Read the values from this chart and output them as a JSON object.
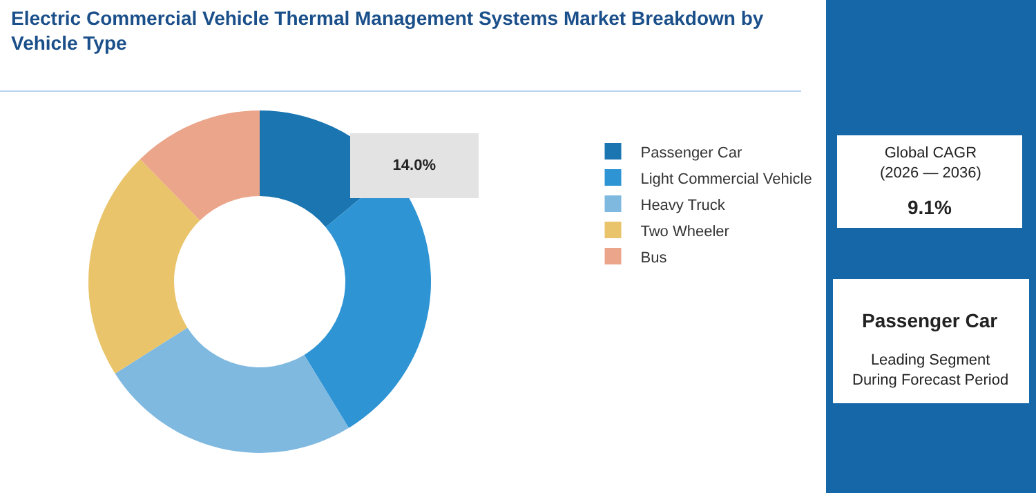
{
  "chart_data": {
    "type": "donut",
    "title": "Electric Commercial Vehicle Thermal Management Systems Market Breakdown by Vehicle Type",
    "categories": [
      "Passenger Car",
      "Light Commercial Vehicle",
      "Heavy Truck",
      "Two Wheeler",
      "Bus"
    ],
    "values": [
      14.0,
      27.3,
      24.7,
      21.7,
      12.3
    ],
    "colors": [
      "#1a75b0",
      "#2f94d4",
      "#7fb9e0",
      "#e9c46a",
      "#eba58a"
    ],
    "value_labels": [
      "14.0%",
      null,
      null,
      null,
      null
    ],
    "legend": "right",
    "annotations": [
      "Global CAGR\n(2026 — 2036)",
      "9.1%",
      "Passenger Car",
      "Leading Segment\nDuring Forecast Period"
    ]
  }
}
